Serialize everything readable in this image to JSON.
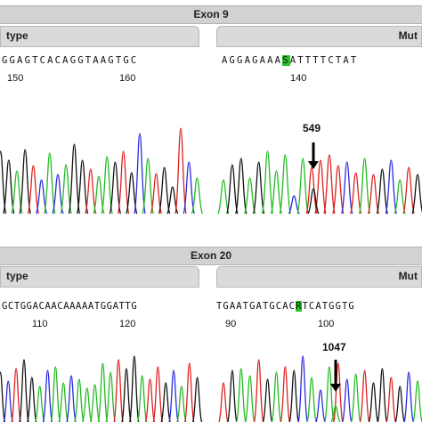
{
  "exon9": {
    "title": "Exon 9",
    "wt_tab": "type",
    "mut_tab": "Mut",
    "wt_seq": "GGAGTCACAGGTAAGTGC",
    "wt_pos": [
      "150",
      "160"
    ],
    "mut_seq_pre": "AGGAGAAA",
    "mut_seq_hl": "S",
    "mut_seq_post": "ATTTTCTAT",
    "mut_pos": [
      "140"
    ],
    "mutation_label": "549"
  },
  "exon20": {
    "title": "Exon 20",
    "wt_tab": "type",
    "mut_tab": "Mut",
    "wt_seq": "GCTGGACAACAAAAATGGATTG",
    "wt_pos": [
      "110",
      "120"
    ],
    "mut_seq_pre": "TGAATGATGCAC",
    "mut_seq_hl": "R",
    "mut_seq_post": "TCATGGTG",
    "mut_pos": [
      "90",
      "100"
    ],
    "mutation_label": "1047"
  },
  "colors": {
    "A": "#22bb22",
    "C": "#2a2ae0",
    "G": "#111111",
    "T": "#e02020",
    "highlight": "#25c425"
  }
}
